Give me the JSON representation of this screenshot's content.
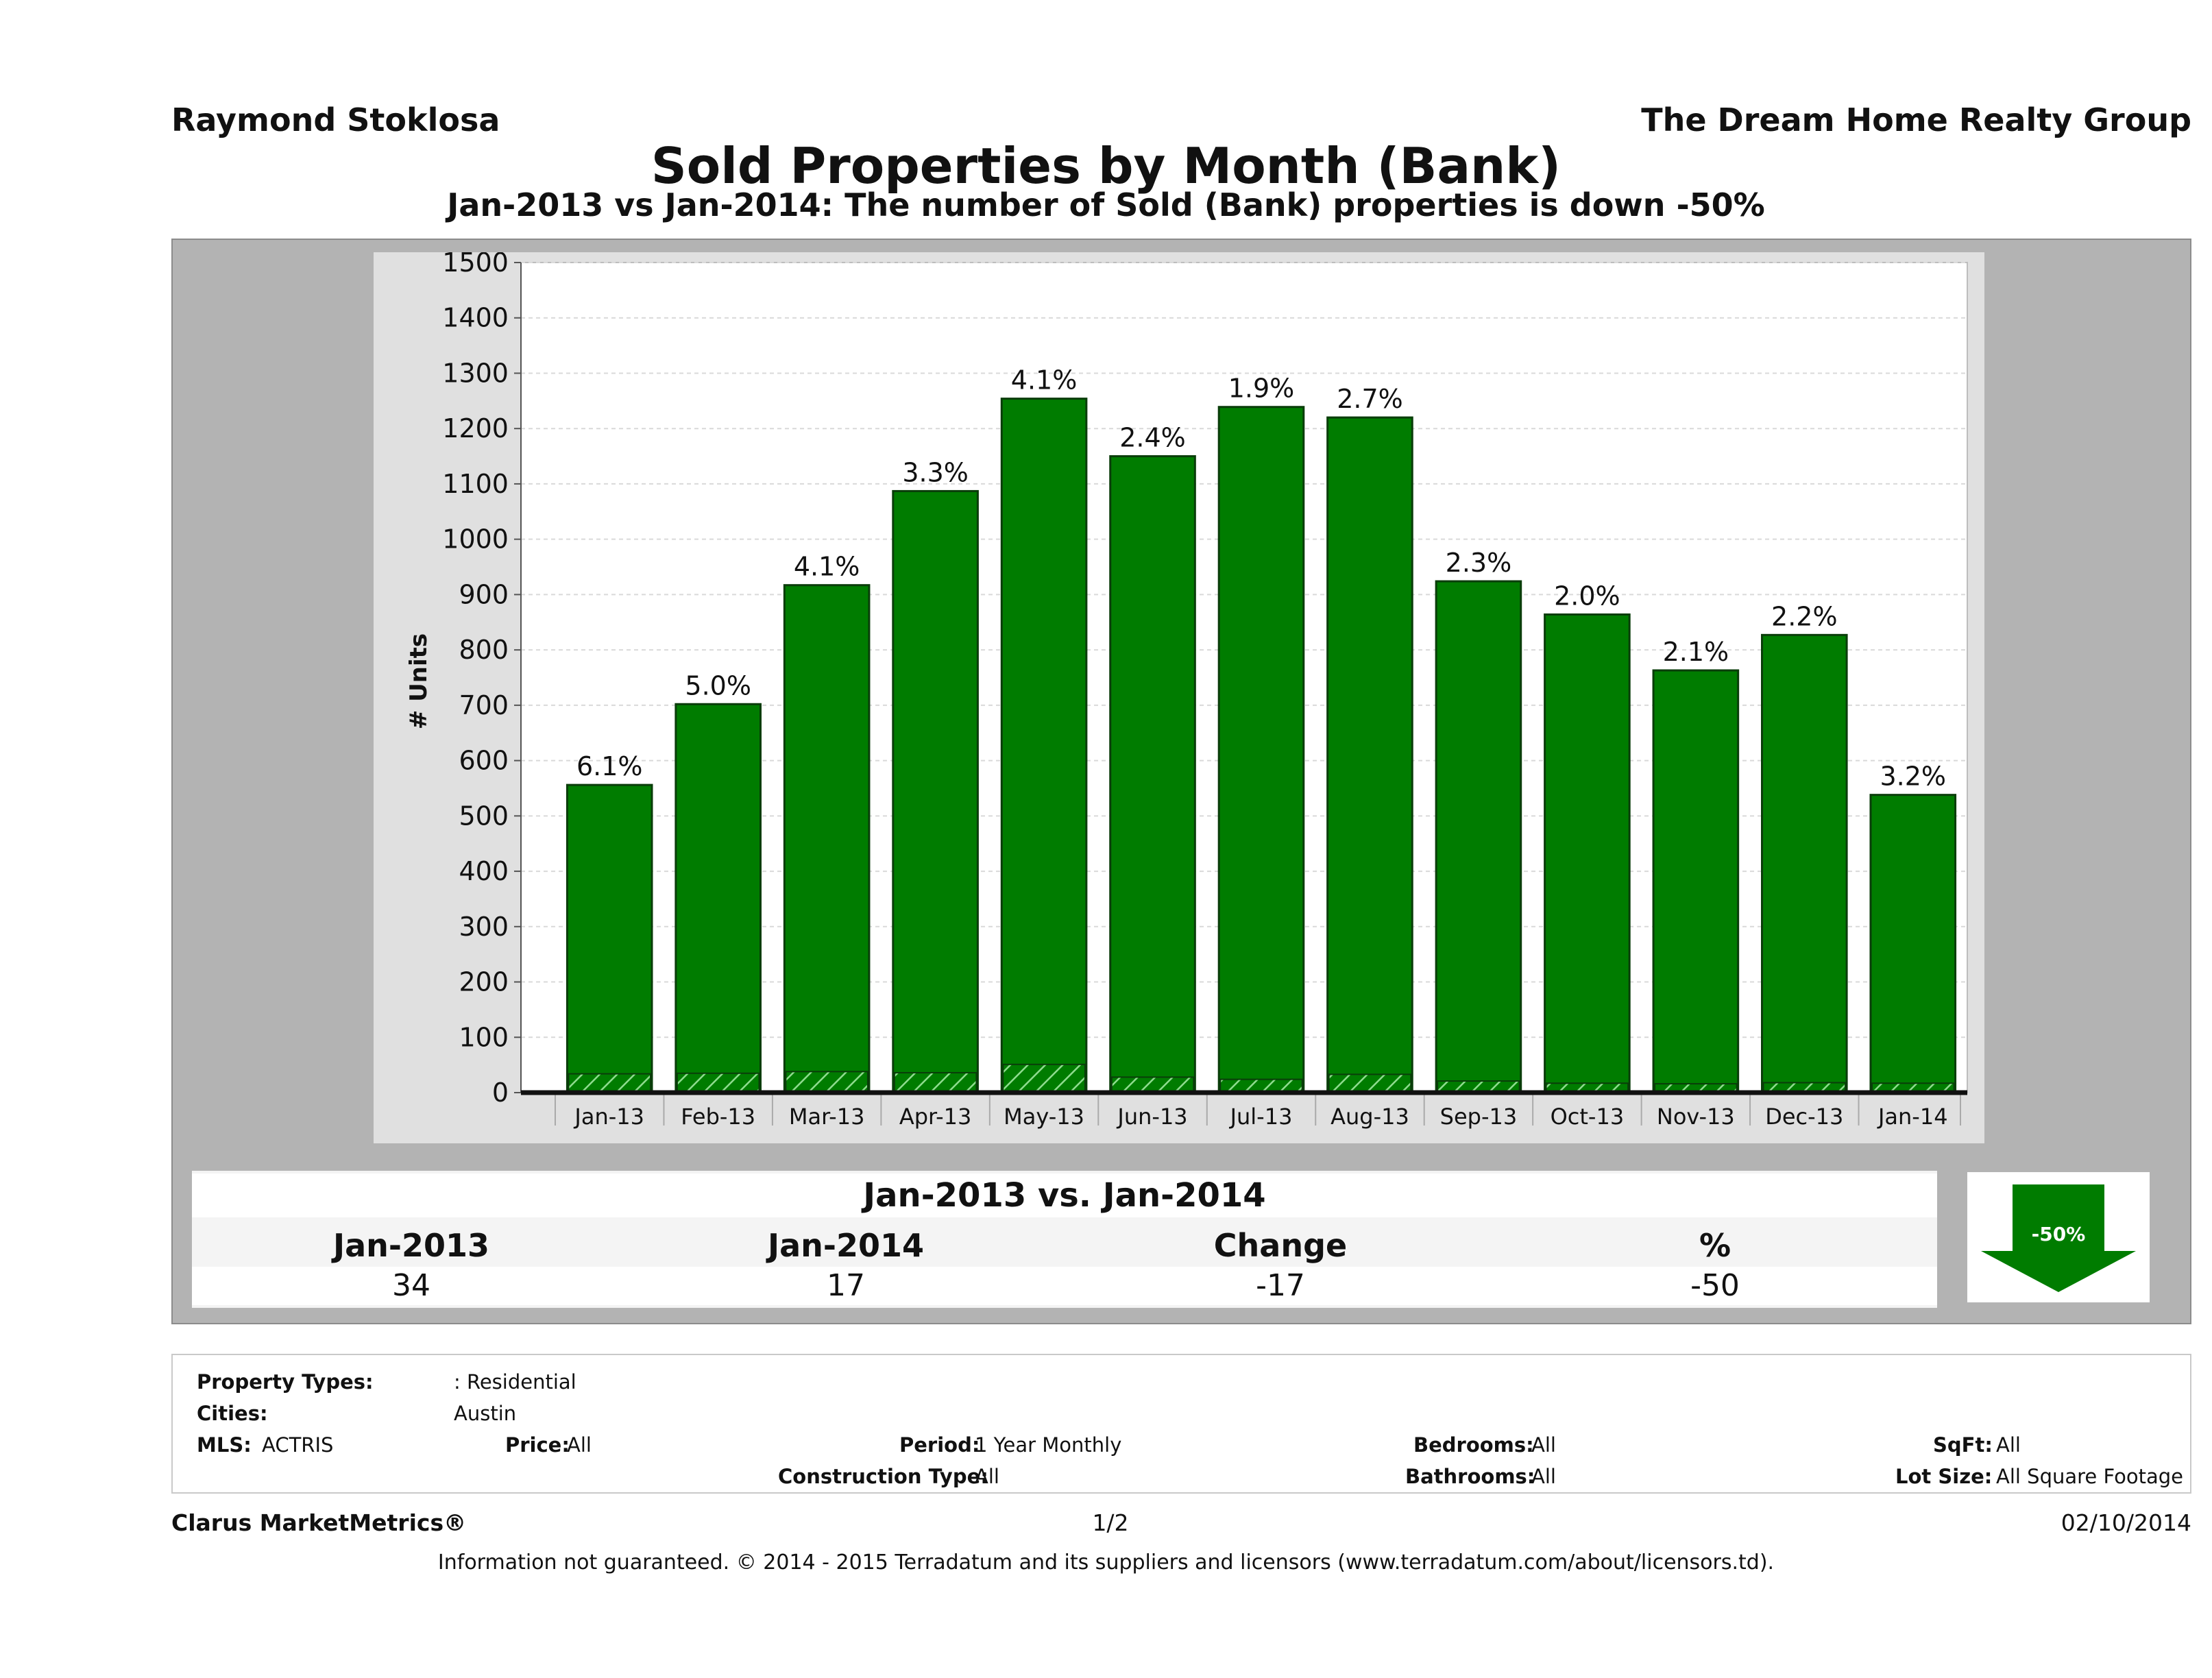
{
  "header": {
    "agent_name": "Raymond Stoklosa",
    "company_name": "The Dream Home Realty Group"
  },
  "chart_title": "Sold Properties by Month (Bank)",
  "chart_subtitle": "Jan-2013 vs Jan-2014: The number of Sold (Bank)  properties is down -50%",
  "chart_data": {
    "type": "bar",
    "ylabel": "# Units",
    "xlabel": "",
    "ylim": [
      0,
      1500
    ],
    "yticks": [
      0,
      100,
      200,
      300,
      400,
      500,
      600,
      700,
      800,
      900,
      1000,
      1100,
      1200,
      1300,
      1400,
      1500
    ],
    "grid": true,
    "categories": [
      "Jan-13",
      "Feb-13",
      "Mar-13",
      "Apr-13",
      "May-13",
      "Jun-13",
      "Jul-13",
      "Aug-13",
      "Sep-13",
      "Oct-13",
      "Nov-13",
      "Dec-13",
      "Jan-14"
    ],
    "series": [
      {
        "values": [
          556,
          702,
          917,
          1087,
          1254,
          1150,
          1239,
          1220,
          924,
          864,
          763,
          827,
          538
        ],
        "color": "#007c00"
      },
      {
        "values": [
          34,
          35,
          38,
          36,
          51,
          28,
          24,
          33,
          21,
          17,
          16,
          18,
          17
        ],
        "color": "#007c00",
        "pattern": "hatched"
      }
    ],
    "data_labels": [
      "6.1%",
      "5.0%",
      "4.1%",
      "3.3%",
      "4.1%",
      "2.4%",
      "1.9%",
      "2.7%",
      "2.3%",
      "2.0%",
      "2.1%",
      "2.2%",
      "3.2%"
    ]
  },
  "summary": {
    "title": "Jan-2013 vs. Jan-2014",
    "headers": [
      "Jan-2013",
      "Jan-2014",
      "Change",
      "%"
    ],
    "values": [
      "34",
      "17",
      "-17",
      "-50"
    ],
    "badge": "-50%",
    "badge_color": "#007c00"
  },
  "filters": {
    "property_types_label": "Property Types:",
    "property_types_value": ": Residential",
    "cities_label": "Cities:",
    "cities_value": "Austin",
    "mls_label": "MLS:",
    "mls_value": "ACTRIS",
    "price_label": "Price:",
    "price_value": "All",
    "period_label": "Period:",
    "period_value": "1 Year Monthly",
    "construction_label": "Construction Type:",
    "construction_value": "All",
    "bedrooms_label": "Bedrooms:",
    "bedrooms_value": "All",
    "bathrooms_label": "Bathrooms:",
    "bathrooms_value": "All",
    "sqft_label": "SqFt:",
    "sqft_value": "All",
    "lotsize_label": "Lot Size:",
    "lotsize_value": "All Square Footage"
  },
  "footer": {
    "brand": "Clarus MarketMetrics®",
    "page": "1/2",
    "date": "02/10/2014",
    "disclaimer": "Information not guaranteed. © 2014 - 2015 Terradatum and its suppliers and licensors (www.terradatum.com/about/licensors.td)."
  }
}
